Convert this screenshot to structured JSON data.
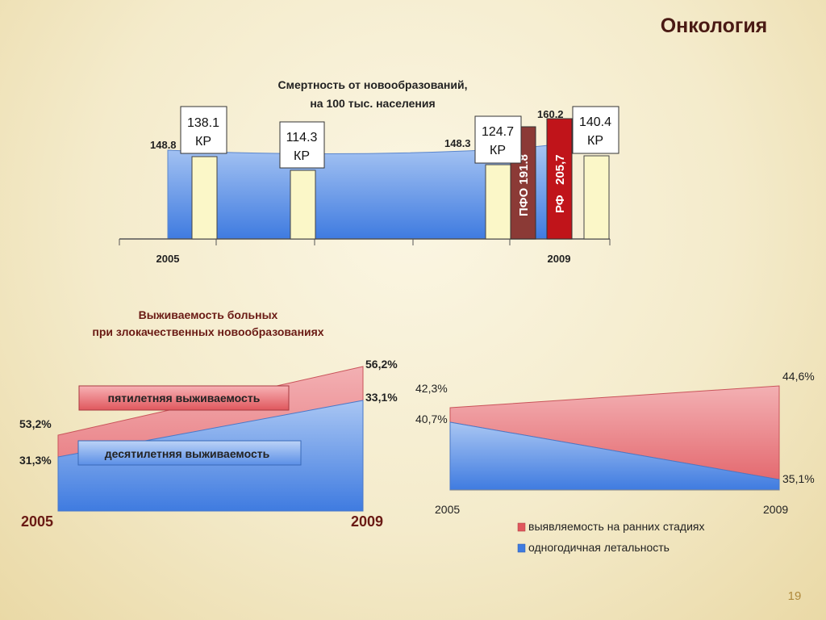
{
  "page": {
    "title": "Онкология",
    "page_number": "19"
  },
  "chart_data": [
    {
      "type": "bar",
      "title": "Смертность от новообразований,",
      "subtitle": "на 100 тыс. населения",
      "x_labels": [
        "2005",
        "2009"
      ],
      "area_labels": [
        "148.8",
        "148.3"
      ],
      "area_values": [
        148.8,
        148.3
      ],
      "bars": [
        {
          "group": "2005",
          "value": 138.1,
          "label_value": "138.1",
          "label_unit": "КР",
          "color": "#fbf7c8"
        },
        {
          "group": "between",
          "value": 114.3,
          "label_value": "114.3",
          "label_unit": "КР",
          "color": "#fbf7c8"
        },
        {
          "group": "2009",
          "value": 124.7,
          "label_value": "124.7",
          "label_unit": "КР",
          "color": "#fbf7c8"
        },
        {
          "group": "2009",
          "value": 191.8,
          "label_value": "ПФО 191.8",
          "color": "#8b3a36"
        },
        {
          "group": "2009",
          "value": 205.7,
          "label_value": "РФ   205,7",
          "top_label": "160.2",
          "color": "#c0141a"
        },
        {
          "group": "2009",
          "value": 140.4,
          "label_value": "140.4",
          "label_unit": "КР",
          "color": "#fbf7c8"
        }
      ],
      "colors": {
        "area": "#6f9ee8",
        "kr_bar": "#fbf7c8",
        "pfo_bar": "#8b3a36",
        "rf_bar": "#c0141a"
      }
    },
    {
      "type": "area",
      "title": "Выживаемость больных",
      "subtitle": "при злокачественных новообразованиях",
      "x": [
        "2005",
        "2009"
      ],
      "series": [
        {
          "name": "пятилетняя выживаемость",
          "values": [
            53.2,
            56.2
          ],
          "labels": [
            "53,2%",
            "56,2%"
          ],
          "color": "#e9787d"
        },
        {
          "name": "десятилетняя выживаемость",
          "values": [
            31.3,
            33.1
          ],
          "labels": [
            "31,3%",
            "33,1%"
          ],
          "color": "#5b8fe6"
        }
      ]
    },
    {
      "type": "area",
      "x": [
        "2005",
        "2009"
      ],
      "series": [
        {
          "name": "выявляемость на ранних стадиях",
          "values": [
            42.3,
            44.6
          ],
          "labels": [
            "42,3%",
            "44,6%"
          ],
          "color": "#e9787d"
        },
        {
          "name": "одногодичная летальность",
          "values": [
            40.7,
            35.1
          ],
          "labels": [
            "40,7%",
            "35,1%"
          ],
          "color": "#5b8fe6"
        }
      ],
      "legend": [
        "выявляемость на ранних стадиях",
        "одногодичная летальность"
      ]
    }
  ]
}
